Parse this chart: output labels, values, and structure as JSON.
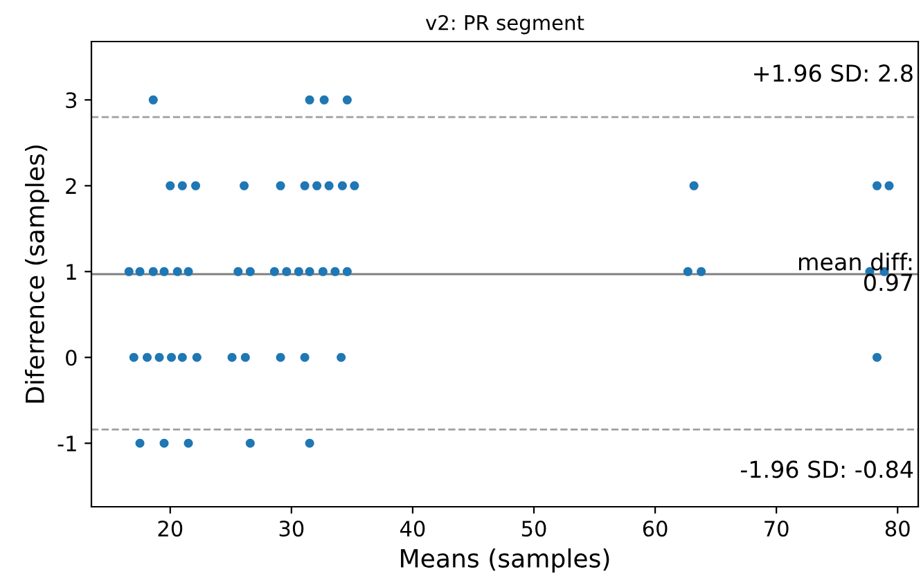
{
  "chart_data": {
    "type": "scatter",
    "title": "v2: PR segment",
    "xlabel": "Means (samples)",
    "ylabel": "Diferrence (samples)",
    "x": [
      18.6,
      31.5,
      32.7,
      34.6,
      20,
      21.0,
      22.1,
      26.1,
      29.1,
      31.1,
      32.1,
      33.1,
      34.2,
      35.2,
      63.2,
      78.3,
      79.3,
      16.6,
      17.5,
      18.6,
      19.5,
      20.6,
      21.5,
      25.6,
      26.6,
      28.6,
      29.6,
      30.6,
      31.5,
      32.6,
      33.6,
      34.6,
      62.7,
      63.8,
      77.7,
      78.9,
      17.0,
      18.1,
      19.1,
      20.1,
      21.0,
      22.2,
      25.1,
      26.2,
      29.1,
      31.1,
      34.1,
      78.3,
      17.5,
      19.5,
      21.5,
      26.6,
      31.5
    ],
    "values": [
      3,
      3,
      3,
      3,
      2,
      2,
      2,
      2,
      2,
      2,
      2,
      2,
      2,
      2,
      2,
      2,
      2,
      1,
      1,
      1,
      1,
      1,
      1,
      1,
      1,
      1,
      1,
      1,
      1,
      1,
      1,
      1,
      1,
      1,
      1,
      1,
      0,
      0,
      0,
      0,
      0,
      0,
      0,
      0,
      0,
      0,
      0,
      0,
      -1,
      -1,
      -1,
      -1,
      -1
    ],
    "color": "#1f77b4",
    "marker": "circle",
    "grid": false,
    "xlim": [
      13.5,
      81.7
    ],
    "ylim": [
      -1.74,
      3.68
    ],
    "xticks": [
      20,
      30,
      40,
      50,
      60,
      70,
      80
    ],
    "yticks": [
      -1,
      0,
      1,
      2,
      3
    ],
    "ref_lines": [
      {
        "axis": "y",
        "value": 2.8,
        "label": "+1.96 SD: 2.8",
        "line_style": "dashed",
        "color": "#a0a0a0"
      },
      {
        "axis": "y",
        "value": 0.97,
        "label": "mean diff:\n0.97",
        "line_style": "solid",
        "color": "#808080"
      },
      {
        "axis": "y",
        "value": -0.84,
        "label": "-1.96 SD: -0.84",
        "line_style": "dashed",
        "color": "#a0a0a0"
      }
    ]
  }
}
